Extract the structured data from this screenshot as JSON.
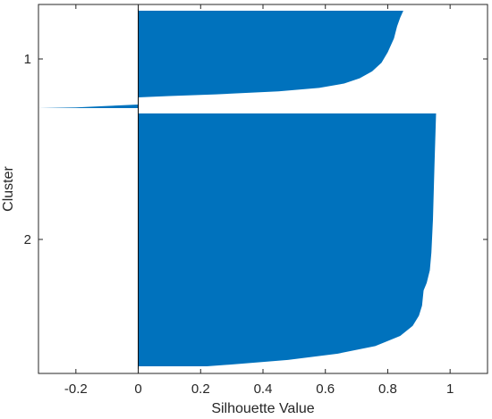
{
  "chart_data": {
    "type": "area",
    "title": "",
    "xlabel": "Silhouette Value",
    "ylabel": "Cluster",
    "xlim": [
      -0.32,
      1.12
    ],
    "x_ticks": [
      "-0.2",
      "0",
      "0.2",
      "0.4",
      "0.6",
      "0.8",
      "1"
    ],
    "x_tick_values": [
      -0.2,
      0,
      0.2,
      0.4,
      0.6,
      0.8,
      1
    ],
    "y_ticks": [
      "1",
      "2"
    ],
    "grid": false,
    "color": "#0072BD",
    "clusters": [
      {
        "label": "1",
        "silhouette_profile": [
          [
            0.0,
            0.85
          ],
          [
            0.08,
            0.84
          ],
          [
            0.18,
            0.83
          ],
          [
            0.32,
            0.82
          ],
          [
            0.48,
            0.8
          ],
          [
            0.6,
            0.78
          ],
          [
            0.7,
            0.75
          ],
          [
            0.78,
            0.71
          ],
          [
            0.84,
            0.66
          ],
          [
            0.89,
            0.58
          ],
          [
            0.93,
            0.45
          ],
          [
            0.965,
            0.25
          ],
          [
            0.985,
            0.1
          ],
          [
            1.0,
            0.0
          ]
        ]
      },
      {
        "label": "",
        "silhouette_profile": [
          [
            0.0,
            0.0
          ],
          [
            0.4,
            -0.1
          ],
          [
            0.8,
            -0.2
          ],
          [
            1.0,
            -0.32
          ]
        ]
      },
      {
        "label": "2",
        "silhouette_profile": [
          [
            0.0,
            0.955
          ],
          [
            0.2,
            0.95
          ],
          [
            0.42,
            0.945
          ],
          [
            0.55,
            0.94
          ],
          [
            0.62,
            0.935
          ],
          [
            0.67,
            0.925
          ],
          [
            0.7,
            0.915
          ],
          [
            0.76,
            0.91
          ],
          [
            0.8,
            0.9
          ],
          [
            0.84,
            0.88
          ],
          [
            0.88,
            0.84
          ],
          [
            0.92,
            0.76
          ],
          [
            0.95,
            0.64
          ],
          [
            0.975,
            0.48
          ],
          [
            0.99,
            0.33
          ],
          [
            1.0,
            0.22
          ]
        ]
      }
    ]
  }
}
